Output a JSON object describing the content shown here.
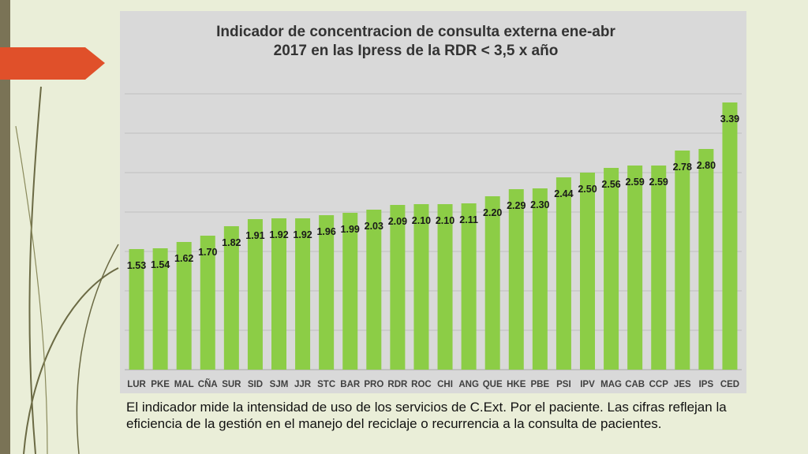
{
  "colors": {
    "background": "#eaeed8",
    "left_bar": "#7a7356",
    "accent_arrow": "#e0502a",
    "panel": "#d9d9d9",
    "bar": "#8ccd46",
    "text": "#333333"
  },
  "caption": "El indicador mide la intensidad de uso de los servicios de C.Ext. Por el paciente. Las cifras reflejan la eficiencia de la gestión en el manejo del reciclaje o recurrencia a la consulta de pacientes.",
  "chart_data": {
    "type": "bar",
    "title": "Indicador de concentracion de consulta externa ene-abr",
    "subtitle": "2017 en las Ipress de la RDR < 3,5 x año",
    "xlabel": "",
    "ylabel": "",
    "ylim": [
      0,
      3.5
    ],
    "grid": true,
    "categories": [
      "LUR",
      "PKE",
      "MAL",
      "CÑA",
      "SUR",
      "SID",
      "SJM",
      "JJR",
      "STC",
      "BAR",
      "PRO",
      "RDR",
      "ROC",
      "CHI",
      "ANG",
      "QUE",
      "HKE",
      "PBE",
      "PSI",
      "IPV",
      "MAG",
      "CAB",
      "CCP",
      "JES",
      "IPS",
      "CED"
    ],
    "values": [
      1.53,
      1.54,
      1.62,
      1.7,
      1.82,
      1.91,
      1.92,
      1.92,
      1.96,
      1.99,
      2.03,
      2.09,
      2.1,
      2.1,
      2.11,
      2.2,
      2.29,
      2.3,
      2.44,
      2.5,
      2.56,
      2.59,
      2.59,
      2.78,
      2.8,
      3.39
    ],
    "value_labels": [
      "1.53",
      "1.54",
      "1.62",
      "1.70",
      "1.82",
      "1.91",
      "1.92",
      "1.92",
      "1.96",
      "1.99",
      "2.03",
      "2.09",
      "2.10",
      "2.10",
      "2.11",
      "2.20",
      "2.29",
      "2.30",
      "2.44",
      "2.50",
      "2.56",
      "2.59",
      "2.59",
      "2.78",
      "2.80",
      "3.39"
    ]
  }
}
